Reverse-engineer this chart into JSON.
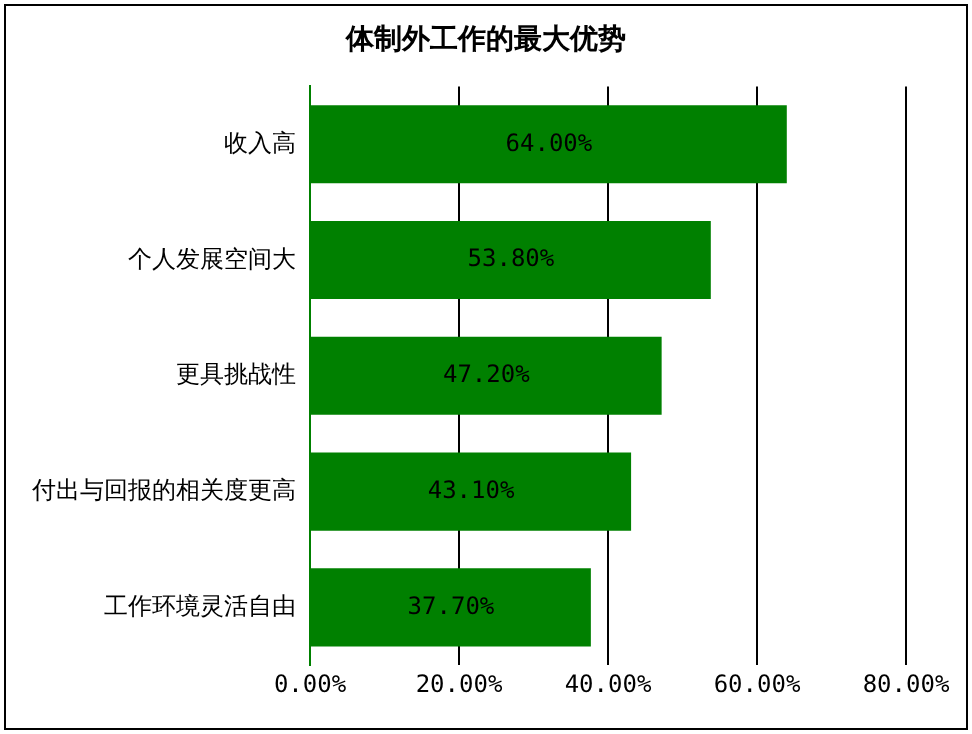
{
  "chart_data": {
    "type": "bar",
    "orientation": "horizontal",
    "title": "体制外工作的最大优势",
    "categories": [
      "收入高",
      "个人发展空间大",
      "更具挑战性",
      "付出与回报的相关度更高",
      "工作环境灵活自由"
    ],
    "values": [
      64.0,
      53.8,
      47.2,
      43.1,
      37.7
    ],
    "value_labels": [
      "64.00%",
      "53.80%",
      "47.20%",
      "43.10%",
      "37.70%"
    ],
    "color": "#008000",
    "xlim": [
      0,
      80
    ],
    "xticks": [
      {
        "value": 0,
        "label": "0.00%"
      },
      {
        "value": 20,
        "label": "20.00%"
      },
      {
        "value": 40,
        "label": "40.00%"
      },
      {
        "value": 60,
        "label": "60.00%"
      },
      {
        "value": 80,
        "label": "80.00%"
      }
    ],
    "grid": "x",
    "legend": false
  }
}
